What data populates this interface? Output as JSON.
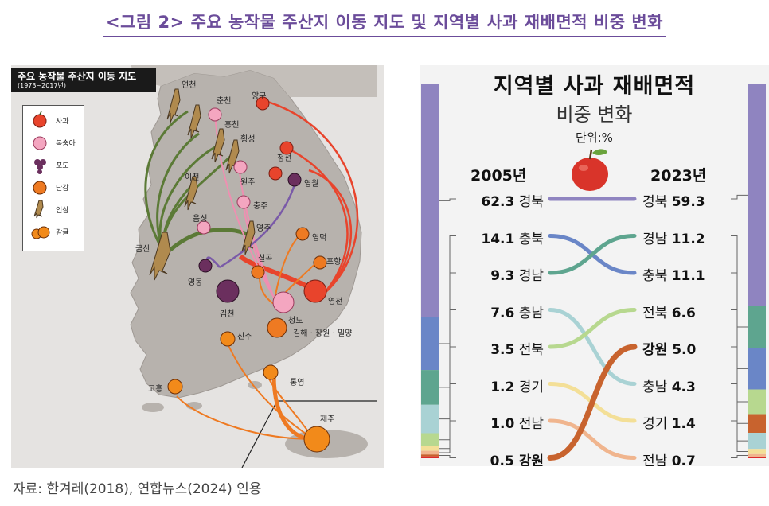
{
  "figure_title": "<그림 2> 주요 농작물 주산지 이동 지도 및 지역별 사과 재배면적 비중 변화",
  "source_note": "자료: 한겨레(2018), 연합뉴스(2024) 인용",
  "map": {
    "title": "주요 농작물 주산지 이동 지도",
    "period": "(1973~2017년)",
    "legend": [
      {
        "label": "사과",
        "icon": "apple-icon"
      },
      {
        "label": "복숭아",
        "icon": "peach-icon"
      },
      {
        "label": "포도",
        "icon": "grape-icon"
      },
      {
        "label": "단감",
        "icon": "persimmon-icon"
      },
      {
        "label": "인삼",
        "icon": "ginseng-icon"
      },
      {
        "label": "감귤",
        "icon": "tangerine-icon"
      }
    ],
    "places": {
      "yeoncheon": "연천",
      "chuncheon": "춘천",
      "yanggu": "양구",
      "hongcheon": "홍천",
      "hoengseong": "횡성",
      "jeongseon": "정선",
      "icheon": "이천",
      "wonju": "원주",
      "yeongwol": "영월",
      "chungju": "충주",
      "eumseong": "음성",
      "yeongju": "영주",
      "geumsan": "금산",
      "yeongdeok": "영덕",
      "chilgok": "칠곡",
      "pohang": "포항",
      "yeongdong": "영동",
      "gimcheon": "김천",
      "yeongcheon": "영천",
      "cheongdo": "청도",
      "gimhae": "김해 · 창원 · 밀양",
      "jinju": "진주",
      "goheung": "고흥",
      "tongyeong": "통영",
      "jeju": "제주"
    },
    "colors": {
      "apple": "#e8442c",
      "peach": "#f4a6c0",
      "grape": "#6b2f5e",
      "persimmon": "#ee7a22",
      "ginseng": "#5b7a36",
      "tangerine": "#f28a1a",
      "land": "#b7b2ad",
      "sea": "#e5e3e1"
    }
  },
  "chart": {
    "title": "지역별 사과 재배면적",
    "subtitle": "비중 변화",
    "unit": "단위:%",
    "year_left": "2005년",
    "year_right": "2023년",
    "left": [
      {
        "value": "62.3",
        "region": "경북"
      },
      {
        "value": "14.1",
        "region": "충북"
      },
      {
        "value": "9.3",
        "region": "경남"
      },
      {
        "value": "7.6",
        "region": "충남"
      },
      {
        "value": "3.5",
        "region": "전북"
      },
      {
        "value": "1.2",
        "region": "경기"
      },
      {
        "value": "1.0",
        "region": "전남"
      },
      {
        "value": "0.5",
        "region": "강원"
      }
    ],
    "right": [
      {
        "region": "경북",
        "value": "59.3"
      },
      {
        "region": "경남",
        "value": "11.2"
      },
      {
        "region": "충북",
        "value": "11.1"
      },
      {
        "region": "전북",
        "value": "6.6"
      },
      {
        "region": "강원",
        "value": "5.0"
      },
      {
        "region": "충남",
        "value": "4.3"
      },
      {
        "region": "경기",
        "value": "1.4"
      },
      {
        "region": "전남",
        "value": "0.7"
      }
    ],
    "region_colors": {
      "경북": "#8f84c0",
      "충북": "#6a86c7",
      "경남": "#5ea58f",
      "충남": "#a9d2d4",
      "전북": "#b7d88f",
      "경기": "#f3df97",
      "전남": "#f0b58e",
      "강원": "#c8632e",
      "기타": "#dd2b2b"
    }
  },
  "chart_data": {
    "type": "slope",
    "title": "지역별 사과 재배면적 비중 변화",
    "unit": "%",
    "categories": [
      "2005년",
      "2023년"
    ],
    "series": [
      {
        "name": "경북",
        "values": [
          62.3,
          59.3
        ]
      },
      {
        "name": "충북",
        "values": [
          14.1,
          11.1
        ]
      },
      {
        "name": "경남",
        "values": [
          9.3,
          11.2
        ]
      },
      {
        "name": "충남",
        "values": [
          7.6,
          4.3
        ]
      },
      {
        "name": "전북",
        "values": [
          3.5,
          6.6
        ]
      },
      {
        "name": "경기",
        "values": [
          1.2,
          1.4
        ]
      },
      {
        "name": "전남",
        "values": [
          1.0,
          0.7
        ]
      },
      {
        "name": "강원",
        "values": [
          0.5,
          5.0
        ]
      }
    ]
  }
}
